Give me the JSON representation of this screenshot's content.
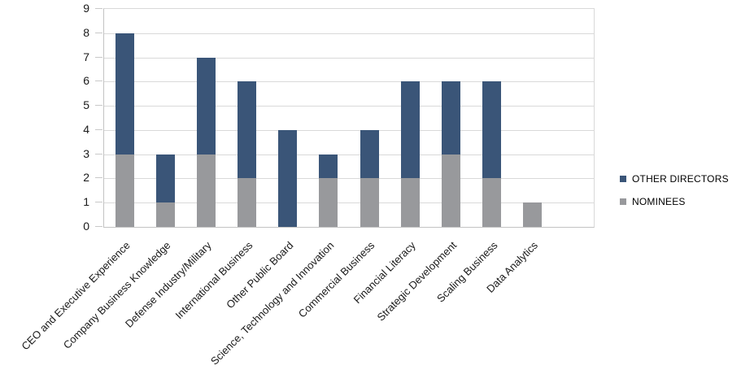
{
  "chart_data": {
    "type": "bar",
    "stacked": true,
    "title": "",
    "xlabel": "",
    "ylabel": "",
    "categories": [
      "CEO and Executive Experience",
      "Company Business Knowledge",
      "Defense Industry/Military",
      "International Business",
      "Other Public Board",
      "Science, Technology and Innovation",
      "Commercial Business",
      "Financial Literacy",
      "Strategic Development",
      "Scaling Business",
      "Data Analytics"
    ],
    "series": [
      {
        "name": "NOMINEES",
        "color": "#98999C",
        "values": [
          3,
          1,
          3,
          2,
          0,
          2,
          2,
          2,
          3,
          2,
          1
        ]
      },
      {
        "name": "OTHER DIRECTORS",
        "color": "#3A5578",
        "values": [
          5,
          2,
          4,
          4,
          4,
          1,
          2,
          4,
          3,
          4,
          0
        ]
      }
    ],
    "stacked_totals": [
      8,
      3,
      7,
      6,
      4,
      3,
      4,
      6,
      6,
      6,
      1
    ],
    "ylim": [
      0,
      9
    ],
    "yticks": [
      0,
      1,
      2,
      3,
      4,
      5,
      6,
      7,
      8,
      9
    ],
    "grid": "horizontal",
    "legend_position": "right",
    "legend": [
      {
        "label": "OTHER DIRECTORS",
        "color": "#3A5578"
      },
      {
        "label": "NOMINEES",
        "color": "#98999C"
      }
    ]
  },
  "colors": {
    "background": "#FFFFFF",
    "gridline": "#D9D9D9",
    "axis": "#C3C3C3",
    "text": "#000000"
  }
}
